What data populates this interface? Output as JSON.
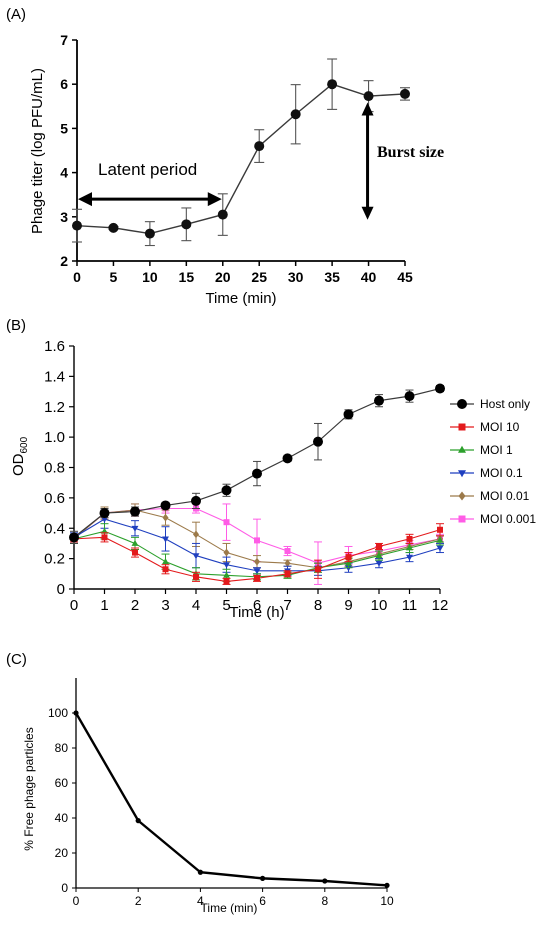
{
  "chart_data": [
    {
      "panel": "(A)",
      "type": "line",
      "xlabel": "Time (min)",
      "ylabel": "Phage titer (log PFU/mL)",
      "xlim": [
        0,
        45
      ],
      "ylim": [
        2,
        7
      ],
      "x_ticks": [
        0,
        5,
        10,
        15,
        20,
        25,
        30,
        35,
        40,
        45
      ],
      "y_ticks": [
        2,
        3,
        4,
        5,
        6,
        7
      ],
      "grid": false,
      "x": [
        0,
        5,
        10,
        15,
        20,
        25,
        30,
        35,
        40,
        45
      ],
      "series": [
        {
          "values": [
            2.8,
            2.75,
            2.62,
            2.83,
            3.05,
            4.6,
            5.32,
            6.0,
            5.73,
            5.78
          ],
          "errors": [
            0.37,
            0.03,
            0.27,
            0.37,
            0.47,
            0.37,
            0.67,
            0.57,
            0.35,
            0.14
          ],
          "color": "#3a3a3a",
          "marker": "circle"
        }
      ],
      "annotations": [
        {
          "text": "Latent period",
          "type": "double-arrow-horizontal",
          "x_from": 0,
          "x_to": 20,
          "y": 3.4
        },
        {
          "text": "Burst size",
          "type": "double-arrow-vertical",
          "x": 40,
          "y_from": 3.0,
          "y_to": 5.7
        }
      ]
    },
    {
      "panel": "(B)",
      "type": "line",
      "xlabel": "Time (h)",
      "ylabel": "OD",
      "ylabel_sub": "600",
      "xlim": [
        0,
        12
      ],
      "ylim": [
        0,
        1.6
      ],
      "x_ticks": [
        0,
        1,
        2,
        3,
        4,
        5,
        6,
        7,
        8,
        9,
        10,
        11,
        12
      ],
      "y_ticks": [
        "0",
        "0.2",
        "0.4",
        "0.6",
        "0.8",
        "1.0",
        "1.2",
        "1.4",
        "1.6"
      ],
      "grid": false,
      "legend_position": "right",
      "x": [
        0,
        1,
        2,
        3,
        4,
        5,
        6,
        7,
        8,
        9,
        10,
        11,
        12
      ],
      "series": [
        {
          "name": "Host only",
          "color": "#000000",
          "line_color": "#3a3a3a",
          "marker": "circle",
          "values": [
            0.34,
            0.5,
            0.51,
            0.55,
            0.58,
            0.65,
            0.76,
            0.86,
            0.97,
            1.15,
            1.24,
            1.27,
            1.32
          ],
          "errors": [
            0.04,
            0.03,
            0.03,
            0.02,
            0.05,
            0.04,
            0.08,
            0.02,
            0.12,
            0.03,
            0.04,
            0.04,
            0.02
          ]
        },
        {
          "name": "MOI 10",
          "color": "#e31a1c",
          "marker": "square",
          "values": [
            0.33,
            0.34,
            0.24,
            0.13,
            0.08,
            0.05,
            0.07,
            0.1,
            0.13,
            0.21,
            0.28,
            0.33,
            0.39
          ],
          "errors": [
            0.02,
            0.03,
            0.03,
            0.03,
            0.03,
            0.02,
            0.02,
            0.02,
            0.06,
            0.03,
            0.02,
            0.03,
            0.04
          ]
        },
        {
          "name": "MOI 1",
          "color": "#2ca02c",
          "marker": "triangle-up",
          "values": [
            0.33,
            0.38,
            0.3,
            0.18,
            0.1,
            0.09,
            0.08,
            0.09,
            0.14,
            0.17,
            0.22,
            0.27,
            0.32
          ],
          "errors": [
            0.03,
            0.05,
            0.04,
            0.05,
            0.04,
            0.04,
            0.02,
            0.02,
            0.03,
            0.03,
            0.03,
            0.03,
            0.03
          ]
        },
        {
          "name": "MOI 0.1",
          "color": "#1f3fbf",
          "marker": "triangle-down",
          "values": [
            0.34,
            0.46,
            0.4,
            0.33,
            0.22,
            0.16,
            0.12,
            0.12,
            0.12,
            0.14,
            0.17,
            0.21,
            0.27
          ],
          "errors": [
            0.03,
            0.06,
            0.05,
            0.08,
            0.08,
            0.05,
            0.02,
            0.03,
            0.03,
            0.03,
            0.03,
            0.03,
            0.03
          ]
        },
        {
          "name": "MOI 0.01",
          "color": "#9c7a4a",
          "marker": "diamond",
          "values": [
            0.33,
            0.5,
            0.52,
            0.47,
            0.36,
            0.24,
            0.18,
            0.17,
            0.14,
            0.18,
            0.23,
            0.28,
            0.33
          ],
          "errors": [
            0.03,
            0.04,
            0.04,
            0.05,
            0.08,
            0.06,
            0.04,
            0.02,
            0.03,
            0.03,
            0.03,
            0.02,
            0.02
          ]
        },
        {
          "name": "MOI 0.001",
          "color": "#ff5ce6",
          "marker": "square",
          "values": [
            0.33,
            0.5,
            0.52,
            0.53,
            0.53,
            0.44,
            0.32,
            0.25,
            0.17,
            0.22,
            0.25,
            0.29,
            0.33
          ],
          "errors": [
            0.03,
            0.04,
            0.04,
            0.03,
            0.03,
            0.12,
            0.14,
            0.03,
            0.14,
            0.06,
            0.03,
            0.03,
            0.03
          ]
        }
      ]
    },
    {
      "panel": "(C)",
      "type": "line",
      "xlabel": "Time (min)",
      "ylabel": "% Free phage particles",
      "xlim": [
        0,
        10
      ],
      "ylim": [
        0,
        120
      ],
      "x_ticks": [
        0,
        2,
        4,
        6,
        8,
        10
      ],
      "y_ticks": [
        0,
        20,
        40,
        60,
        80,
        100
      ],
      "grid": false,
      "x": [
        0,
        2,
        4,
        6,
        8,
        10
      ],
      "series": [
        {
          "values": [
            100,
            38.5,
            9,
            5.5,
            4,
            1.5
          ],
          "color": "#000000",
          "marker": "dot"
        }
      ]
    }
  ]
}
